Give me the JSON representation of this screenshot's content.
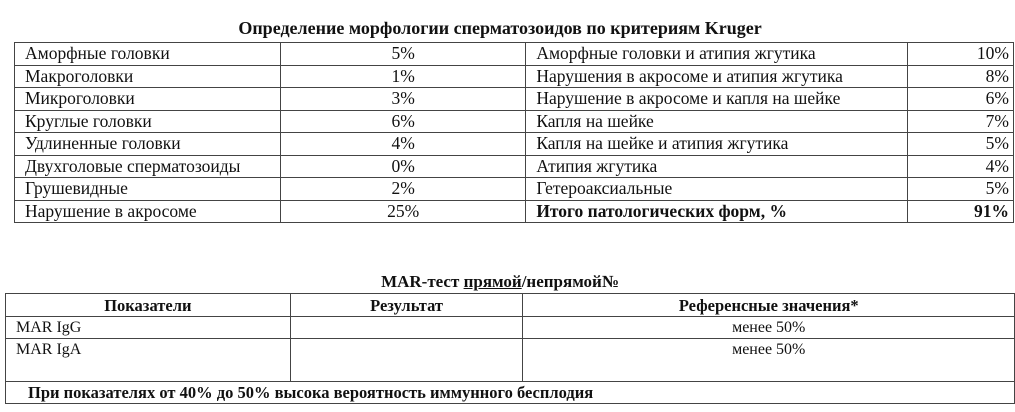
{
  "kruger": {
    "title": "Определение морфологии сперматозоидов по критериям Kruger",
    "left_rows": [
      {
        "label": "Аморфные головки",
        "value": "5%"
      },
      {
        "label": "Макроголовки",
        "value": "1%"
      },
      {
        "label": "Микроголовки",
        "value": "3%"
      },
      {
        "label": "Круглые головки",
        "value": "6%"
      },
      {
        "label": "Удлиненные головки",
        "value": "4%"
      },
      {
        "label": "Двухголовые сперматозоиды",
        "value": "0%"
      },
      {
        "label": "Грушевидные",
        "value": "2%"
      },
      {
        "label": "Нарушение в акросоме",
        "value": "25%"
      }
    ],
    "right_rows": [
      {
        "label": "Аморфные головки и атипия жгутика",
        "value": "10%"
      },
      {
        "label": "Нарушения в акросоме и атипия жгутика",
        "value": "8%"
      },
      {
        "label": "Нарушение в акросоме и капля на шейке",
        "value": "6%"
      },
      {
        "label": "Капля на шейке",
        "value": "7%"
      },
      {
        "label": "Капля на шейке и атипия жгутика",
        "value": "5%"
      },
      {
        "label": "Атипия жгутика",
        "value": "4%"
      },
      {
        "label": "Гетероаксиальные",
        "value": "5%"
      },
      {
        "label": "Итого патологических форм, %",
        "value": "91%"
      }
    ]
  },
  "mar": {
    "title_prefix": "MAR-тест ",
    "title_underlined": "прямой",
    "title_suffix": "/непрямой№",
    "headers": [
      "Показатели",
      "Результат",
      "Референсные значения*"
    ],
    "rows": [
      {
        "name": "MAR IgG",
        "result": "",
        "reference": "менее 50%"
      },
      {
        "name": "MAR IgA",
        "result": "",
        "reference": "менее 50%"
      }
    ],
    "footnote": "При показателях от 40% до 50% высока вероятность иммунного бесплодия"
  }
}
